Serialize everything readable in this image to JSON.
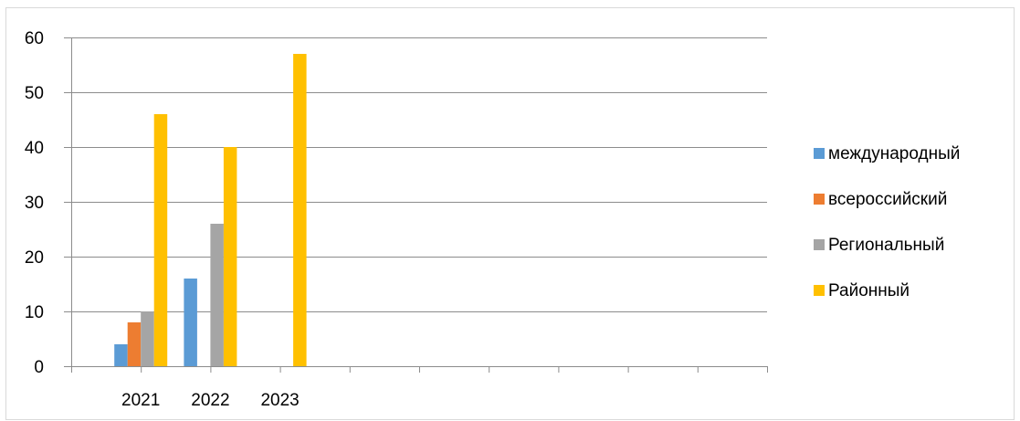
{
  "chart_data": {
    "type": "bar",
    "categories": [
      "2021",
      "2022",
      "2023",
      "",
      "",
      "",
      "",
      "",
      "",
      ""
    ],
    "series": [
      {
        "name": "международный",
        "color": "#5B9BD5",
        "values": [
          4,
          16,
          0,
          null,
          null,
          null,
          null,
          null,
          null,
          null
        ]
      },
      {
        "name": "всероссийский",
        "color": "#ED7D31",
        "values": [
          8,
          0,
          0,
          null,
          null,
          null,
          null,
          null,
          null,
          null
        ]
      },
      {
        "name": "Региональный",
        "color": "#A5A5A5",
        "values": [
          10,
          26,
          0,
          null,
          null,
          null,
          null,
          null,
          null,
          null
        ]
      },
      {
        "name": "Районный",
        "color": "#FFC000",
        "values": [
          46,
          40,
          57,
          null,
          null,
          null,
          null,
          null,
          null,
          null
        ]
      }
    ],
    "y_ticks": [
      "0",
      "10",
      "20",
      "30",
      "40",
      "50",
      "60"
    ],
    "ylim": [
      0,
      60
    ],
    "grid": true,
    "legend_position": "right",
    "title": "",
    "xlabel": "",
    "ylabel": ""
  }
}
